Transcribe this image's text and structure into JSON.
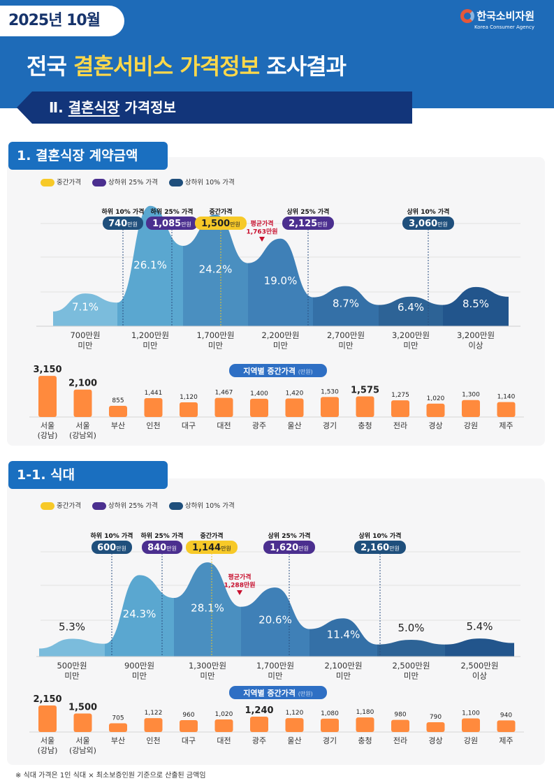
{
  "header": {
    "date": "2025년 10월",
    "logo_name": "한국소비자원",
    "logo_sub": "Korea Consumer Agency",
    "title_1": "전국 ",
    "title_highlight": "결혼서비스 가격정보",
    "title_2": " 조사결과"
  },
  "section": {
    "numeral": "Ⅱ. ",
    "underlined": "결혼식장",
    "rest": " 가격정보"
  },
  "legend": [
    {
      "label": "중간가격",
      "color": "#f7c928"
    },
    {
      "label": "상하위 25% 가격",
      "color": "#4b2f8f"
    },
    {
      "label": "상하위 10% 가격",
      "color": "#1f4f7c"
    }
  ],
  "colors": {
    "bands": [
      "#7bbcdc",
      "#5aa7d0",
      "#4a8fc0",
      "#3f80b7",
      "#3470a7",
      "#2d6396",
      "#22558c"
    ],
    "bar": "#ff8a3d",
    "average": "#c8102e"
  },
  "sections": [
    {
      "title": "1. 결혼식장 계약금액"
    },
    {
      "title": "1-1. 식대"
    }
  ],
  "chart_data": [
    {
      "type": "area",
      "categories": [
        "700만원\n미만",
        "1,200만원\n미만",
        "1,700만원\n미만",
        "2,200만원\n미만",
        "2,700만원\n미만",
        "3,200만원\n미만",
        "3,200만원\n이상"
      ],
      "values": [
        7.1,
        26.1,
        24.2,
        19.0,
        8.7,
        6.4,
        8.5
      ],
      "value_suffix": "%",
      "markers": [
        {
          "label": "하위 10% 가격",
          "value": "740",
          "unit": "만원",
          "kind": "10"
        },
        {
          "label": "하위 25% 가격",
          "value": "1,085",
          "unit": "만원",
          "kind": "25"
        },
        {
          "label": "중간가격",
          "value": "1,500",
          "unit": "만원",
          "kind": "median"
        },
        {
          "label": "상위 25% 가격",
          "value": "2,125",
          "unit": "만원",
          "kind": "25"
        },
        {
          "label": "상위 10% 가격",
          "value": "3,060",
          "unit": "만원",
          "kind": "10"
        }
      ],
      "average": {
        "label": "평균가격",
        "value": "1,763만원"
      }
    },
    {
      "type": "bar",
      "title": "지역별 중간가격",
      "unit": "(만원)",
      "categories": [
        "서울\n(강남)",
        "서울\n(강남외)",
        "부산",
        "인천",
        "대구",
        "대전",
        "광주",
        "울산",
        "경기",
        "충청",
        "전라",
        "경상",
        "강원",
        "제주"
      ],
      "values": [
        3150,
        2100,
        855,
        1441,
        1120,
        1467,
        1400,
        1420,
        1530,
        1575,
        1275,
        1020,
        1300,
        1140
      ]
    },
    {
      "type": "area",
      "categories": [
        "500만원\n미만",
        "900만원\n미만",
        "1,300만원\n미만",
        "1,700만원\n미만",
        "2,100만원\n미만",
        "2,500만원\n미만",
        "2,500만원\n이상"
      ],
      "values": [
        5.3,
        24.3,
        28.1,
        20.6,
        11.4,
        5.0,
        5.4
      ],
      "value_suffix": "%",
      "markers": [
        {
          "label": "하위 10% 가격",
          "value": "600",
          "unit": "만원",
          "kind": "10"
        },
        {
          "label": "하위 25% 가격",
          "value": "840",
          "unit": "만원",
          "kind": "25"
        },
        {
          "label": "중간가격",
          "value": "1,144",
          "unit": "만원",
          "kind": "median"
        },
        {
          "label": "상위 25% 가격",
          "value": "1,620",
          "unit": "만원",
          "kind": "25"
        },
        {
          "label": "상위 10% 가격",
          "value": "2,160",
          "unit": "만원",
          "kind": "10"
        }
      ],
      "average": {
        "label": "평균가격",
        "value": "1,288만원"
      }
    },
    {
      "type": "bar",
      "title": "지역별 중간가격",
      "unit": "(만원)",
      "categories": [
        "서울\n(강남)",
        "서울\n(강남외)",
        "부산",
        "인천",
        "대구",
        "대전",
        "광주",
        "울산",
        "경기",
        "충청",
        "전라",
        "경상",
        "강원",
        "제주"
      ],
      "values": [
        2150,
        1500,
        705,
        1122,
        960,
        1020,
        1240,
        1120,
        1080,
        1180,
        980,
        790,
        1100,
        940
      ]
    }
  ],
  "footnote": "※ 식대 가격은 1인 식대 × 최소보증인원 기준으로 산출된 금액임"
}
